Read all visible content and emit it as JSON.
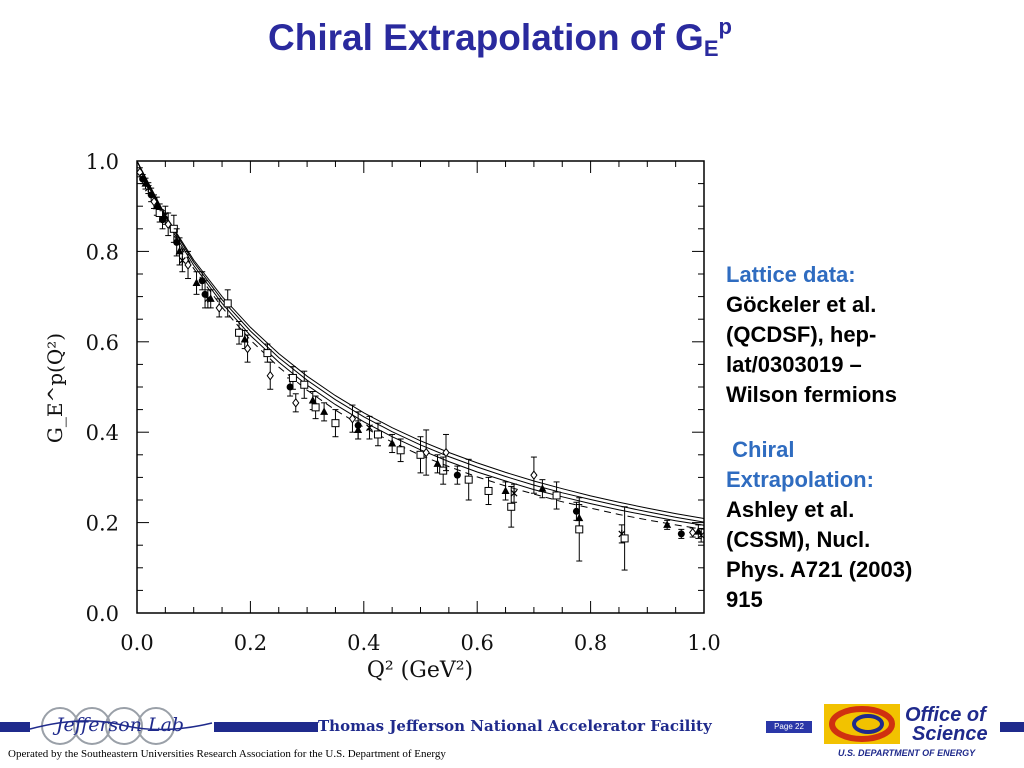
{
  "slide": {
    "title_main": "Chiral Extrapolation of G",
    "title_sub": "E",
    "title_sup": "p"
  },
  "notes": {
    "lattice_head": "Lattice data:",
    "lattice_lines": [
      "Göckeler et al.",
      "(QCDSF), hep-",
      "lat/0303019 –",
      "Wilson fermions"
    ],
    "chiral_head_1": " Chiral",
    "chiral_head_2": "Extrapolation:",
    "chiral_lines": [
      "Ashley et al.",
      "(CSSM), Nucl.",
      "Phys. A721 (2003)",
      "915"
    ]
  },
  "footer": {
    "facility": "Thomas Jefferson National Accelerator Facility",
    "page": "Page 22",
    "operated_by": "Operated by the Southeastern Universities Research Association for the U.S. Department of  Energy",
    "jlab_logo_text": "Jefferson Lab",
    "doe_line1": "Office of",
    "doe_line2": "Science",
    "doe_line3": "U.S. DEPARTMENT OF ENERGY"
  },
  "chart_data": {
    "type": "scatter",
    "title": "",
    "xlabel": "Q² (GeV²)",
    "ylabel": "G_E^p(Q²)",
    "xlim": [
      0.0,
      1.0
    ],
    "ylim": [
      0.0,
      1.0
    ],
    "x_ticks": [
      "0.0",
      "0.2",
      "0.4",
      "0.6",
      "0.8",
      "1.0"
    ],
    "y_ticks": [
      "0.0",
      "0.2",
      "0.4",
      "0.6",
      "0.8",
      "1.0"
    ],
    "grid": false,
    "curves": [
      {
        "style": "solid",
        "x": [
          0,
          0.05,
          0.1,
          0.15,
          0.2,
          0.25,
          0.3,
          0.35,
          0.4,
          0.45,
          0.5,
          0.55,
          0.6,
          0.65,
          0.7,
          0.75,
          0.8,
          0.85,
          0.9,
          0.95,
          1.0
        ],
        "y": [
          1.0,
          0.877,
          0.776,
          0.693,
          0.624,
          0.565,
          0.515,
          0.472,
          0.434,
          0.401,
          0.372,
          0.346,
          0.323,
          0.302,
          0.283,
          0.266,
          0.251,
          0.237,
          0.224,
          0.212,
          0.201
        ]
      },
      {
        "style": "solid",
        "x": [
          0,
          0.05,
          0.1,
          0.15,
          0.2,
          0.25,
          0.3,
          0.35,
          0.4,
          0.45,
          0.5,
          0.55,
          0.6,
          0.65,
          0.7,
          0.75,
          0.8,
          0.85,
          0.9,
          0.95,
          1.0
        ],
        "y": [
          1.0,
          0.88,
          0.781,
          0.7,
          0.632,
          0.574,
          0.524,
          0.481,
          0.443,
          0.41,
          0.381,
          0.355,
          0.332,
          0.311,
          0.292,
          0.275,
          0.259,
          0.245,
          0.232,
          0.22,
          0.209
        ]
      },
      {
        "style": "solid",
        "x": [
          0,
          0.05,
          0.1,
          0.15,
          0.2,
          0.25,
          0.3,
          0.35,
          0.4,
          0.45,
          0.5,
          0.55,
          0.6,
          0.65,
          0.7,
          0.75,
          0.8,
          0.85,
          0.9,
          0.95,
          1.0
        ],
        "y": [
          1.0,
          0.872,
          0.769,
          0.685,
          0.614,
          0.555,
          0.504,
          0.461,
          0.423,
          0.39,
          0.361,
          0.335,
          0.312,
          0.292,
          0.273,
          0.257,
          0.242,
          0.228,
          0.216,
          0.204,
          0.194
        ]
      },
      {
        "style": "dashed",
        "x": [
          0,
          0.05,
          0.1,
          0.15,
          0.2,
          0.25,
          0.3,
          0.35,
          0.4,
          0.45,
          0.5,
          0.55,
          0.6,
          0.65,
          0.7,
          0.75,
          0.8,
          0.85,
          0.9,
          0.95,
          1.0
        ],
        "y": [
          1.0,
          0.868,
          0.762,
          0.676,
          0.604,
          0.544,
          0.493,
          0.449,
          0.411,
          0.378,
          0.349,
          0.324,
          0.301,
          0.281,
          0.263,
          0.246,
          0.232,
          0.218,
          0.206,
          0.195,
          0.185
        ]
      }
    ],
    "points": [
      {
        "x": 0.005,
        "y": 0.975,
        "err": 0.01,
        "m": "diamond"
      },
      {
        "x": 0.01,
        "y": 0.96,
        "err": 0.01,
        "m": "circle"
      },
      {
        "x": 0.015,
        "y": 0.95,
        "err": 0.012,
        "m": "triangle"
      },
      {
        "x": 0.02,
        "y": 0.94,
        "err": 0.012,
        "m": "star"
      },
      {
        "x": 0.025,
        "y": 0.925,
        "err": 0.015,
        "m": "circle"
      },
      {
        "x": 0.03,
        "y": 0.91,
        "err": 0.015,
        "m": "diamond"
      },
      {
        "x": 0.035,
        "y": 0.9,
        "err": 0.02,
        "m": "triangle"
      },
      {
        "x": 0.04,
        "y": 0.885,
        "err": 0.02,
        "m": "square"
      },
      {
        "x": 0.045,
        "y": 0.87,
        "err": 0.02,
        "m": "circle"
      },
      {
        "x": 0.05,
        "y": 0.88,
        "err": 0.02,
        "m": "star"
      },
      {
        "x": 0.055,
        "y": 0.86,
        "err": 0.025,
        "m": "diamond"
      },
      {
        "x": 0.065,
        "y": 0.85,
        "err": 0.03,
        "m": "square"
      },
      {
        "x": 0.07,
        "y": 0.82,
        "err": 0.03,
        "m": "circle"
      },
      {
        "x": 0.075,
        "y": 0.8,
        "err": 0.03,
        "m": "triangle"
      },
      {
        "x": 0.08,
        "y": 0.78,
        "err": 0.025,
        "m": "star"
      },
      {
        "x": 0.09,
        "y": 0.77,
        "err": 0.03,
        "m": "diamond"
      },
      {
        "x": 0.105,
        "y": 0.73,
        "err": 0.025,
        "m": "triangle"
      },
      {
        "x": 0.115,
        "y": 0.735,
        "err": 0.02,
        "m": "circle"
      },
      {
        "x": 0.12,
        "y": 0.705,
        "err": 0.03,
        "m": "circle"
      },
      {
        "x": 0.125,
        "y": 0.695,
        "err": 0.02,
        "m": "star"
      },
      {
        "x": 0.13,
        "y": 0.695,
        "err": 0.02,
        "m": "triangle"
      },
      {
        "x": 0.145,
        "y": 0.675,
        "err": 0.02,
        "m": "diamond"
      },
      {
        "x": 0.16,
        "y": 0.685,
        "err": 0.03,
        "m": "square"
      },
      {
        "x": 0.18,
        "y": 0.62,
        "err": 0.025,
        "m": "square"
      },
      {
        "x": 0.19,
        "y": 0.605,
        "err": 0.02,
        "m": "triangle"
      },
      {
        "x": 0.195,
        "y": 0.585,
        "err": 0.03,
        "m": "diamond"
      },
      {
        "x": 0.23,
        "y": 0.575,
        "err": 0.02,
        "m": "square"
      },
      {
        "x": 0.235,
        "y": 0.525,
        "err": 0.03,
        "m": "diamond"
      },
      {
        "x": 0.27,
        "y": 0.5,
        "err": 0.02,
        "m": "circle"
      },
      {
        "x": 0.275,
        "y": 0.52,
        "err": 0.025,
        "m": "square"
      },
      {
        "x": 0.28,
        "y": 0.465,
        "err": 0.02,
        "m": "diamond"
      },
      {
        "x": 0.295,
        "y": 0.505,
        "err": 0.03,
        "m": "square"
      },
      {
        "x": 0.31,
        "y": 0.47,
        "err": 0.02,
        "m": "triangle"
      },
      {
        "x": 0.315,
        "y": 0.455,
        "err": 0.025,
        "m": "square"
      },
      {
        "x": 0.33,
        "y": 0.445,
        "err": 0.02,
        "m": "triangle"
      },
      {
        "x": 0.35,
        "y": 0.42,
        "err": 0.03,
        "m": "square"
      },
      {
        "x": 0.38,
        "y": 0.43,
        "err": 0.03,
        "m": "diamond"
      },
      {
        "x": 0.39,
        "y": 0.415,
        "err": 0.03,
        "m": "circle"
      },
      {
        "x": 0.39,
        "y": 0.405,
        "err": 0.02,
        "m": "triangle"
      },
      {
        "x": 0.41,
        "y": 0.41,
        "err": 0.025,
        "m": "star"
      },
      {
        "x": 0.425,
        "y": 0.395,
        "err": 0.025,
        "m": "square"
      },
      {
        "x": 0.45,
        "y": 0.375,
        "err": 0.02,
        "m": "triangle"
      },
      {
        "x": 0.465,
        "y": 0.36,
        "err": 0.025,
        "m": "square"
      },
      {
        "x": 0.5,
        "y": 0.35,
        "err": 0.04,
        "m": "square"
      },
      {
        "x": 0.51,
        "y": 0.355,
        "err": 0.05,
        "m": "diamond"
      },
      {
        "x": 0.53,
        "y": 0.33,
        "err": 0.02,
        "m": "triangle"
      },
      {
        "x": 0.54,
        "y": 0.315,
        "err": 0.03,
        "m": "square"
      },
      {
        "x": 0.545,
        "y": 0.355,
        "err": 0.04,
        "m": "diamond"
      },
      {
        "x": 0.565,
        "y": 0.305,
        "err": 0.02,
        "m": "circle"
      },
      {
        "x": 0.585,
        "y": 0.295,
        "err": 0.045,
        "m": "square"
      },
      {
        "x": 0.62,
        "y": 0.27,
        "err": 0.03,
        "m": "square"
      },
      {
        "x": 0.65,
        "y": 0.27,
        "err": 0.02,
        "m": "triangle"
      },
      {
        "x": 0.66,
        "y": 0.235,
        "err": 0.045,
        "m": "square"
      },
      {
        "x": 0.665,
        "y": 0.265,
        "err": 0.02,
        "m": "star"
      },
      {
        "x": 0.7,
        "y": 0.305,
        "err": 0.04,
        "m": "diamond"
      },
      {
        "x": 0.715,
        "y": 0.275,
        "err": 0.02,
        "m": "triangle"
      },
      {
        "x": 0.74,
        "y": 0.26,
        "err": 0.03,
        "m": "square"
      },
      {
        "x": 0.775,
        "y": 0.225,
        "err": 0.02,
        "m": "circle"
      },
      {
        "x": 0.78,
        "y": 0.21,
        "err": 0.03,
        "m": "triangle"
      },
      {
        "x": 0.78,
        "y": 0.185,
        "err": 0.07,
        "m": "square"
      },
      {
        "x": 0.855,
        "y": 0.175,
        "err": 0.02,
        "m": "star"
      },
      {
        "x": 0.86,
        "y": 0.165,
        "err": 0.07,
        "m": "square"
      },
      {
        "x": 0.935,
        "y": 0.195,
        "err": 0.01,
        "m": "triangle"
      },
      {
        "x": 0.96,
        "y": 0.175,
        "err": 0.01,
        "m": "circle"
      },
      {
        "x": 0.98,
        "y": 0.178,
        "err": 0.01,
        "m": "diamond"
      },
      {
        "x": 0.99,
        "y": 0.18,
        "err": 0.015,
        "m": "triangle"
      },
      {
        "x": 0.995,
        "y": 0.172,
        "err": 0.015,
        "m": "star"
      }
    ]
  }
}
